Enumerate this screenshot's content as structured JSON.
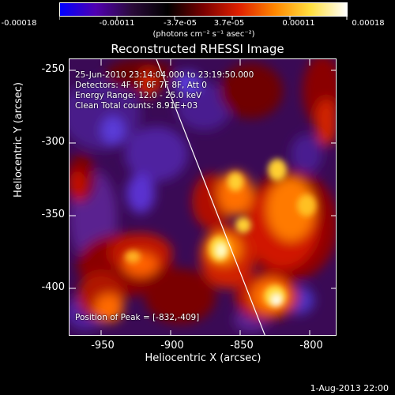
{
  "colorbar": {
    "tick_labels": [
      "-0.00018",
      "-0.00011",
      "-3.7e-05",
      "3.7e-05",
      "0.00011",
      "0.00018"
    ],
    "tick_values": [
      -0.00018,
      -0.00011,
      -3.7e-05,
      3.7e-05,
      0.00011,
      0.00018
    ],
    "units_text": "(photons cm⁻² s⁻¹ asec⁻²)",
    "colors": [
      "#0000ff",
      "#5000b0",
      "#2a0a3a",
      "#000000",
      "#7a0000",
      "#e02000",
      "#ff8800",
      "#ffe040",
      "#ffffff"
    ]
  },
  "title": "Reconstructed RHESSI Image",
  "annotations": {
    "time": "25-Jun-2010 23:14:04.000 to 23:19:50.000",
    "detectors": "Detectors: 4F 5F 6F 7F 8F, Att 0",
    "energy": "Energy Range: 12.0 - 25.0 keV",
    "clean": "Clean     Total counts: 8.91E+03",
    "peak": "Position of Peak = [-832,-409]"
  },
  "axes": {
    "xlabel": "Heliocentric X (arcsec)",
    "ylabel": "Heliocentric Y (arcsec)",
    "x_ticks": [
      "-950",
      "-900",
      "-850",
      "-800"
    ],
    "x_tick_values": [
      -950,
      -900,
      -850,
      -800
    ],
    "y_ticks": [
      "-250",
      "-300",
      "-350",
      "-400"
    ],
    "y_tick_values": [
      -250,
      -300,
      -350,
      -400
    ],
    "xlim": [
      -978,
      -787
    ],
    "ylim": [
      -433,
      -242
    ]
  },
  "footer_date": "1-Aug-2013 22:00"
}
